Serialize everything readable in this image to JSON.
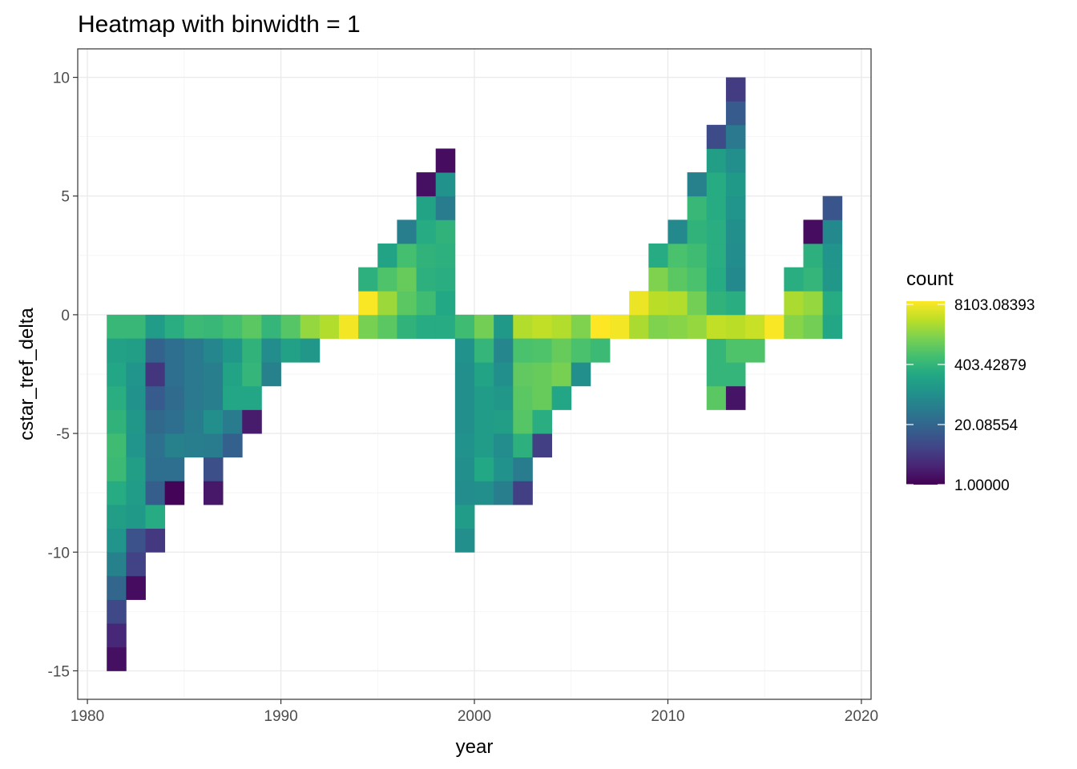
{
  "chart_data": {
    "type": "heatmap",
    "title": "Heatmap with binwidth = 1",
    "xlabel": "year",
    "ylabel": "cstar_tref_delta",
    "xlim": [
      1979.5,
      2020.5
    ],
    "ylim": [
      -16.2,
      11.2
    ],
    "x_ticks": [
      1980,
      1990,
      2000,
      2010,
      2020
    ],
    "y_ticks": [
      10,
      5,
      0,
      -5,
      -10,
      -15
    ],
    "x_tick_labels": [
      "1980",
      "1990",
      "2000",
      "2010",
      "2020"
    ],
    "y_tick_labels": [
      "10",
      "5",
      "0",
      "-5",
      "-10",
      "-15"
    ],
    "grid": true,
    "legend": {
      "title": "count",
      "position": "right",
      "scale": "log",
      "labels": [
        "8103.08393",
        "403.42879",
        "20.08554",
        "1.00000"
      ],
      "values": [
        8103.08393,
        403.42879,
        20.08554,
        1.0
      ],
      "min": 1,
      "max": 9500,
      "colormap": "viridis"
    },
    "bin_width": 1,
    "cells": [
      {
        "x": 1981.5,
        "y_bottom": -1,
        "y_top": 0,
        "log_counts": [
          6.1
        ]
      },
      {
        "x": 1981.5,
        "y_bottom": -15,
        "y_top": -1,
        "log_counts": [
          0.4,
          1.0,
          2.0,
          3.0,
          4.0,
          4.7,
          5.1,
          5.6,
          6.2,
          6.3,
          5.9,
          5.7,
          5.4,
          5.2
        ]
      },
      {
        "x": 1982.5,
        "y_bottom": -1,
        "y_top": 0,
        "log_counts": [
          6.1
        ]
      },
      {
        "x": 1982.5,
        "y_bottom": -12,
        "y_top": -1,
        "log_counts": [
          0.3,
          1.8,
          2.3,
          4.9,
          5.0,
          5.1,
          4.7,
          4.8,
          4.6,
          4.7,
          5.1
        ]
      },
      {
        "x": 1983.5,
        "y_bottom": -1,
        "y_top": 0,
        "log_counts": [
          5.0
        ]
      },
      {
        "x": 1983.5,
        "y_bottom": -10,
        "y_top": -1,
        "log_counts": [
          1.5,
          5.6,
          2.7,
          3.3,
          3.4,
          3.1,
          2.6,
          1.4,
          2.9
        ]
      },
      {
        "x": 1984.5,
        "y_bottom": -1,
        "y_top": 0,
        "log_counts": [
          5.7
        ]
      },
      {
        "x": 1984.5,
        "y_bottom": -8,
        "y_top": -1,
        "log_counts": [
          0.1,
          3.3,
          4.0,
          3.3,
          3.2,
          3.3,
          3.3
        ]
      },
      {
        "x": 1985.5,
        "y_bottom": -1,
        "y_top": 0,
        "log_counts": [
          6.2
        ]
      },
      {
        "x": 1985.5,
        "y_bottom": -6,
        "y_top": -1,
        "log_counts": [
          3.9,
          3.8,
          3.7,
          3.7,
          3.7
        ]
      },
      {
        "x": 1986.5,
        "y_bottom": -1,
        "y_top": 0,
        "log_counts": [
          6.1
        ]
      },
      {
        "x": 1986.5,
        "y_bottom": -8,
        "y_top": -1,
        "log_counts": [
          0.6,
          2.2,
          3.8,
          4.5,
          3.9,
          3.9,
          4.2
        ]
      },
      {
        "x": 1987.5,
        "y_bottom": -1,
        "y_top": 0,
        "log_counts": [
          6.4
        ]
      },
      {
        "x": 1987.5,
        "y_bottom": -6,
        "y_top": -1,
        "log_counts": [
          2.8,
          3.8,
          5.4,
          5.3,
          4.8
        ]
      },
      {
        "x": 1988.5,
        "y_bottom": -1,
        "y_top": 0,
        "log_counts": [
          6.8
        ]
      },
      {
        "x": 1988.5,
        "y_bottom": -5,
        "y_top": -1,
        "log_counts": [
          0.7,
          5.4,
          6.0,
          5.9
        ]
      },
      {
        "x": 1989.5,
        "y_bottom": -1,
        "y_top": 0,
        "log_counts": [
          6.0
        ]
      },
      {
        "x": 1989.5,
        "y_bottom": -3,
        "y_top": -1,
        "log_counts": [
          4.0,
          4.4
        ]
      },
      {
        "x": 1990.5,
        "y_bottom": -1,
        "y_top": 0,
        "log_counts": [
          6.7
        ]
      },
      {
        "x": 1990.5,
        "y_bottom": -2,
        "y_top": -1,
        "log_counts": [
          5.2
        ]
      },
      {
        "x": 1991.5,
        "y_bottom": -1,
        "y_top": 0,
        "log_counts": [
          7.7
        ]
      },
      {
        "x": 1991.5,
        "y_bottom": -2,
        "y_top": -1,
        "log_counts": [
          4.8
        ]
      },
      {
        "x": 1992.5,
        "y_bottom": -1,
        "y_top": 0,
        "log_counts": [
          8.1
        ]
      },
      {
        "x": 1993.5,
        "y_bottom": -1,
        "y_top": 0,
        "log_counts": [
          9.0
        ]
      },
      {
        "x": 1994.5,
        "y_bottom": -1,
        "y_top": 1,
        "log_counts": [
          7.3,
          9.1
        ]
      },
      {
        "x": 1994.5,
        "y_bottom": 1,
        "y_top": 2,
        "log_counts": [
          5.8
        ]
      },
      {
        "x": 1995.5,
        "y_bottom": -1,
        "y_top": 3,
        "log_counts": [
          6.8,
          7.8,
          6.6,
          5.3
        ]
      },
      {
        "x": 1996.5,
        "y_bottom": -1,
        "y_top": 4,
        "log_counts": [
          5.9,
          6.8,
          7.0,
          6.4,
          3.9
        ]
      },
      {
        "x": 1997.5,
        "y_bottom": -1,
        "y_top": 6,
        "log_counts": [
          5.6,
          6.3,
          5.8,
          5.9,
          5.6,
          5.3,
          0.4
        ]
      },
      {
        "x": 1998.5,
        "y_bottom": -1,
        "y_top": 7,
        "log_counts": [
          5.6,
          5.5,
          5.7,
          5.8,
          5.9,
          3.8,
          4.6,
          0.3
        ]
      },
      {
        "x": 1999.5,
        "y_bottom": -1,
        "y_top": 0,
        "log_counts": [
          6.3
        ]
      },
      {
        "x": 1999.5,
        "y_bottom": -10,
        "y_top": -1,
        "log_counts": [
          4.5,
          5.0,
          4.4,
          4.5,
          4.6,
          4.5,
          4.5,
          4.5,
          4.6
        ]
      },
      {
        "x": 2000.5,
        "y_bottom": -1,
        "y_top": 0,
        "log_counts": [
          7.2
        ]
      },
      {
        "x": 2000.5,
        "y_bottom": -8,
        "y_top": -1,
        "log_counts": [
          4.5,
          5.5,
          5.0,
          5.0,
          5.0,
          5.3,
          6.0
        ]
      },
      {
        "x": 2001.5,
        "y_bottom": -1,
        "y_top": 0,
        "log_counts": [
          4.9
        ]
      },
      {
        "x": 2001.5,
        "y_bottom": -8,
        "y_top": -1,
        "log_counts": [
          3.9,
          4.6,
          4.4,
          5.1,
          4.8,
          4.5,
          4.2
        ]
      },
      {
        "x": 2002.5,
        "y_bottom": -1,
        "y_top": 0,
        "log_counts": [
          8.1
        ]
      },
      {
        "x": 2002.5,
        "y_bottom": -8,
        "y_top": -1,
        "log_counts": [
          1.7,
          3.8,
          5.8,
          6.7,
          6.8,
          6.9,
          6.5
        ]
      },
      {
        "x": 2003.5,
        "y_bottom": -1,
        "y_top": 0,
        "log_counts": [
          8.3
        ]
      },
      {
        "x": 2003.5,
        "y_bottom": -6,
        "y_top": -1,
        "log_counts": [
          1.7,
          5.7,
          7.0,
          7.0,
          6.6
        ]
      },
      {
        "x": 2004.5,
        "y_bottom": -1,
        "y_top": 0,
        "log_counts": [
          8.1
        ]
      },
      {
        "x": 2004.5,
        "y_bottom": -4,
        "y_top": -1,
        "log_counts": [
          5.4,
          7.3,
          7.0
        ]
      },
      {
        "x": 2005.5,
        "y_bottom": -1,
        "y_top": 0,
        "log_counts": [
          7.4
        ]
      },
      {
        "x": 2005.5,
        "y_bottom": -3,
        "y_top": -1,
        "log_counts": [
          4.5,
          6.5
        ]
      },
      {
        "x": 2006.5,
        "y_bottom": -1,
        "y_top": 0,
        "log_counts": [
          9.2
        ]
      },
      {
        "x": 2006.5,
        "y_bottom": -2,
        "y_top": -1,
        "log_counts": [
          6.2
        ]
      },
      {
        "x": 2007.5,
        "y_bottom": -1,
        "y_top": 0,
        "log_counts": [
          9.0
        ]
      },
      {
        "x": 2008.5,
        "y_bottom": -1,
        "y_top": 1,
        "log_counts": [
          8.0,
          8.9
        ]
      },
      {
        "x": 2009.5,
        "y_bottom": -1,
        "y_top": 3,
        "log_counts": [
          7.4,
          8.2,
          7.4,
          5.6
        ]
      },
      {
        "x": 2010.5,
        "y_bottom": -1,
        "y_top": 4,
        "log_counts": [
          7.5,
          8.1,
          6.8,
          6.5,
          4.3
        ]
      },
      {
        "x": 2011.5,
        "y_bottom": -1,
        "y_top": 6,
        "log_counts": [
          7.7,
          7.2,
          6.5,
          6.3,
          5.9,
          6.1,
          4.0
        ]
      },
      {
        "x": 2012.5,
        "y_bottom": -4,
        "y_top": 8,
        "log_counts": [
          6.8,
          6.0,
          6.0,
          8.3,
          5.9,
          5.6,
          5.7,
          5.7,
          5.6,
          5.6,
          5.1,
          2.1
        ]
      },
      {
        "x": 2013.5,
        "y_bottom": -4,
        "y_top": 10,
        "log_counts": [
          0.5,
          6.0,
          6.6,
          8.2,
          5.7,
          4.3,
          4.4,
          4.5,
          4.7,
          4.9,
          4.5,
          3.7,
          2.6,
          1.6
        ]
      },
      {
        "x": 2014.5,
        "y_bottom": -2,
        "y_top": 0,
        "log_counts": [
          6.6,
          8.4
        ]
      },
      {
        "x": 2015.5,
        "y_bottom": -1,
        "y_top": 0,
        "log_counts": [
          9.1
        ]
      },
      {
        "x": 2016.5,
        "y_bottom": -1,
        "y_top": 2,
        "log_counts": [
          7.5,
          8.0,
          5.7
        ]
      },
      {
        "x": 2017.5,
        "y_bottom": -1,
        "y_top": 4,
        "log_counts": [
          7.2,
          7.7,
          6.0,
          5.8,
          0.3
        ]
      },
      {
        "x": 2018.5,
        "y_bottom": -1,
        "y_top": 5,
        "log_counts": [
          5.4,
          5.6,
          4.8,
          4.7,
          4.3,
          2.4
        ]
      }
    ]
  }
}
